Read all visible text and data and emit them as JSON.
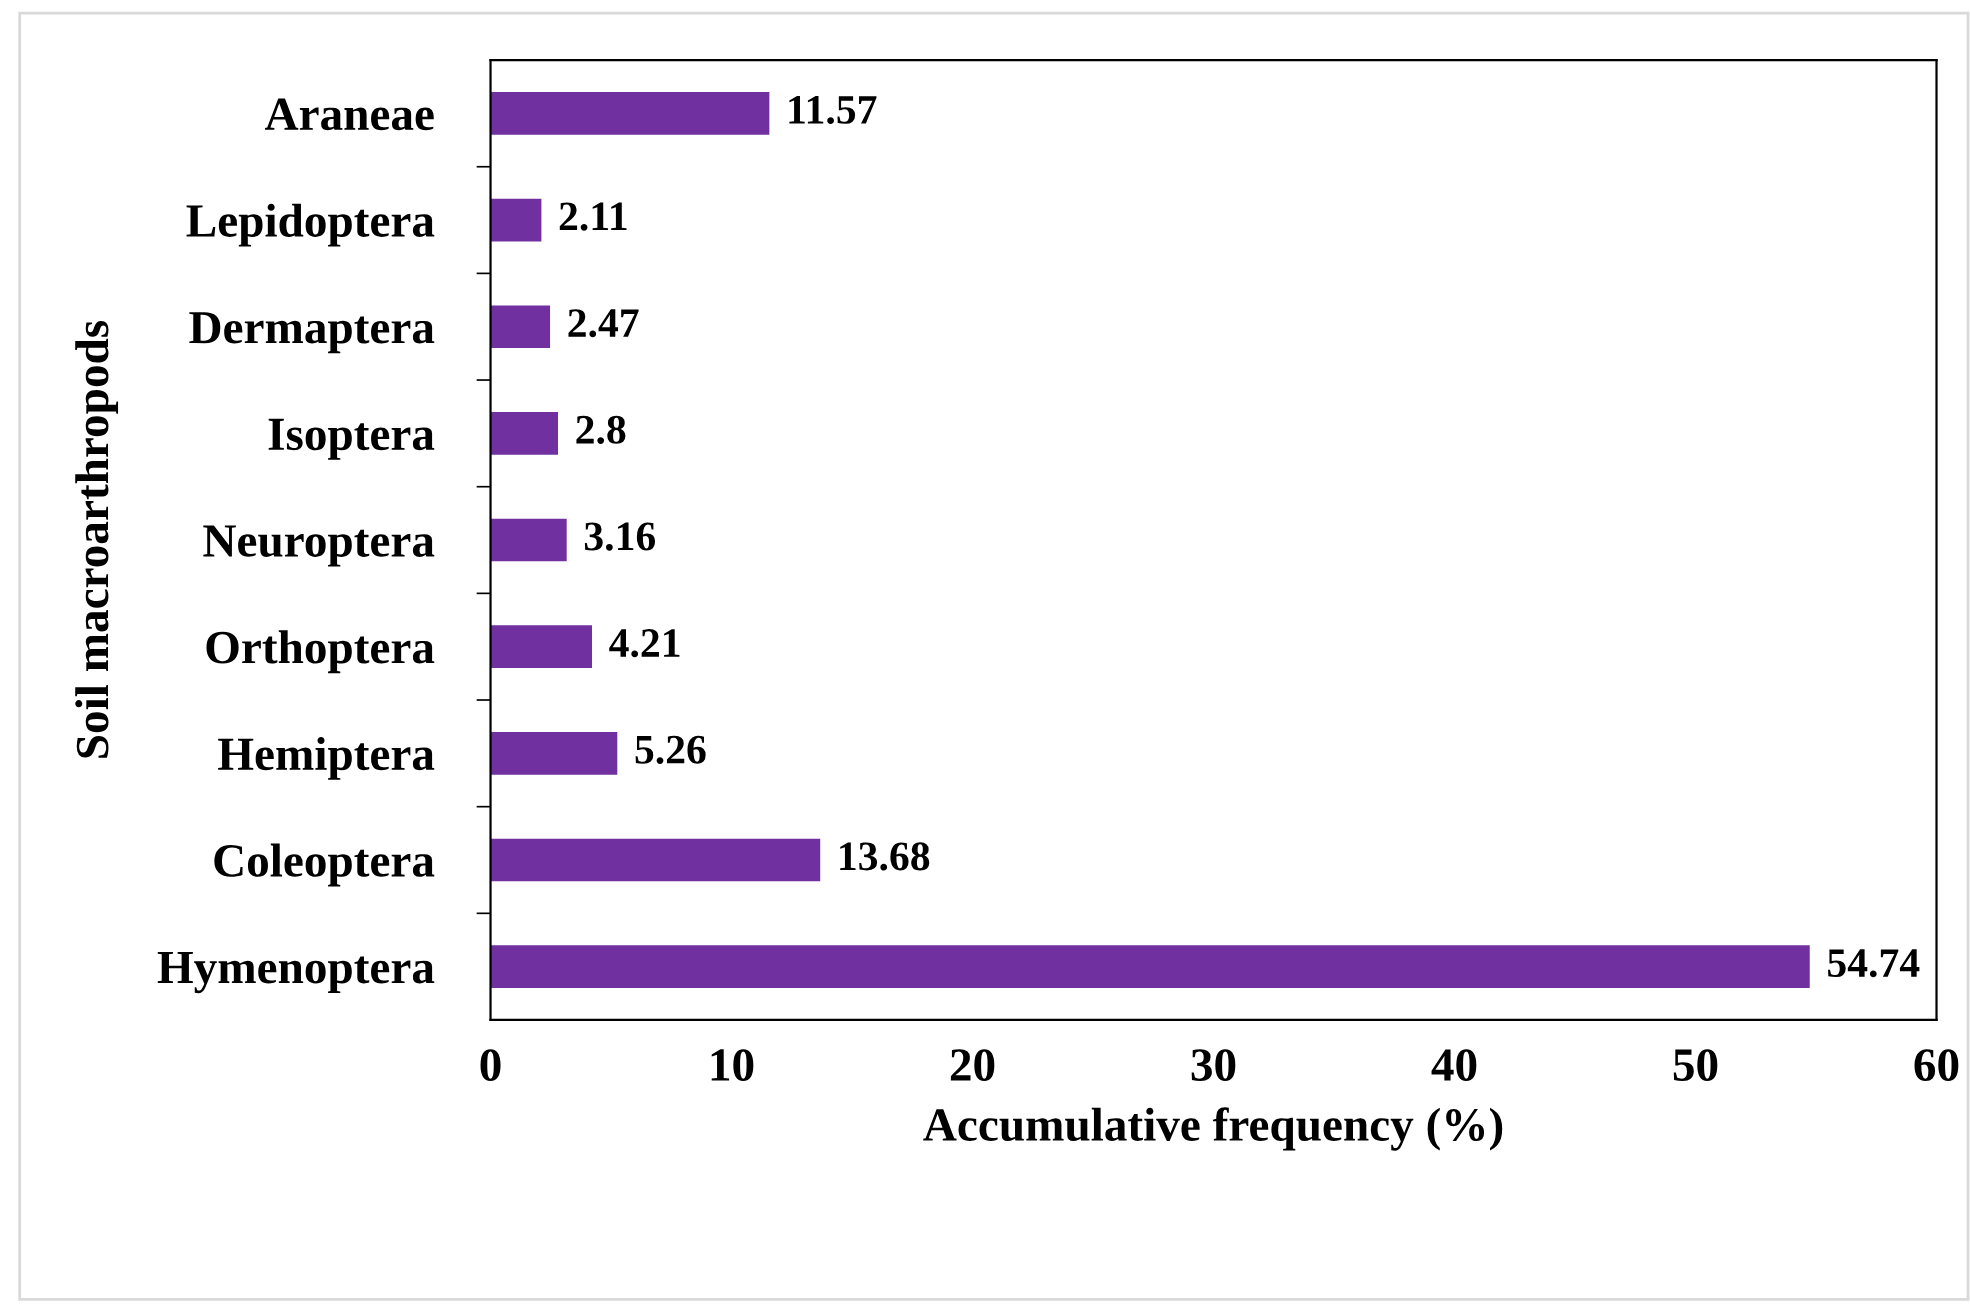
{
  "chart_data": {
    "type": "bar",
    "orientation": "horizontal",
    "xlabel": "Accumulative frequency (%)",
    "ylabel": "Soil macroarthropods",
    "categories": [
      "Araneae",
      "Lepidoptera",
      "Dermaptera",
      "Isoptera",
      "Neuroptera",
      "Orthoptera",
      "Hemiptera",
      "Coleoptera",
      "Hymenoptera"
    ],
    "values": [
      11.57,
      2.11,
      2.47,
      2.8,
      3.16,
      4.21,
      5.26,
      13.68,
      54.74
    ],
    "color": "#7030a0",
    "xlim": [
      0,
      60
    ],
    "xticks": [
      0,
      10,
      20,
      30,
      40,
      50,
      60
    ],
    "data_labels": true
  }
}
